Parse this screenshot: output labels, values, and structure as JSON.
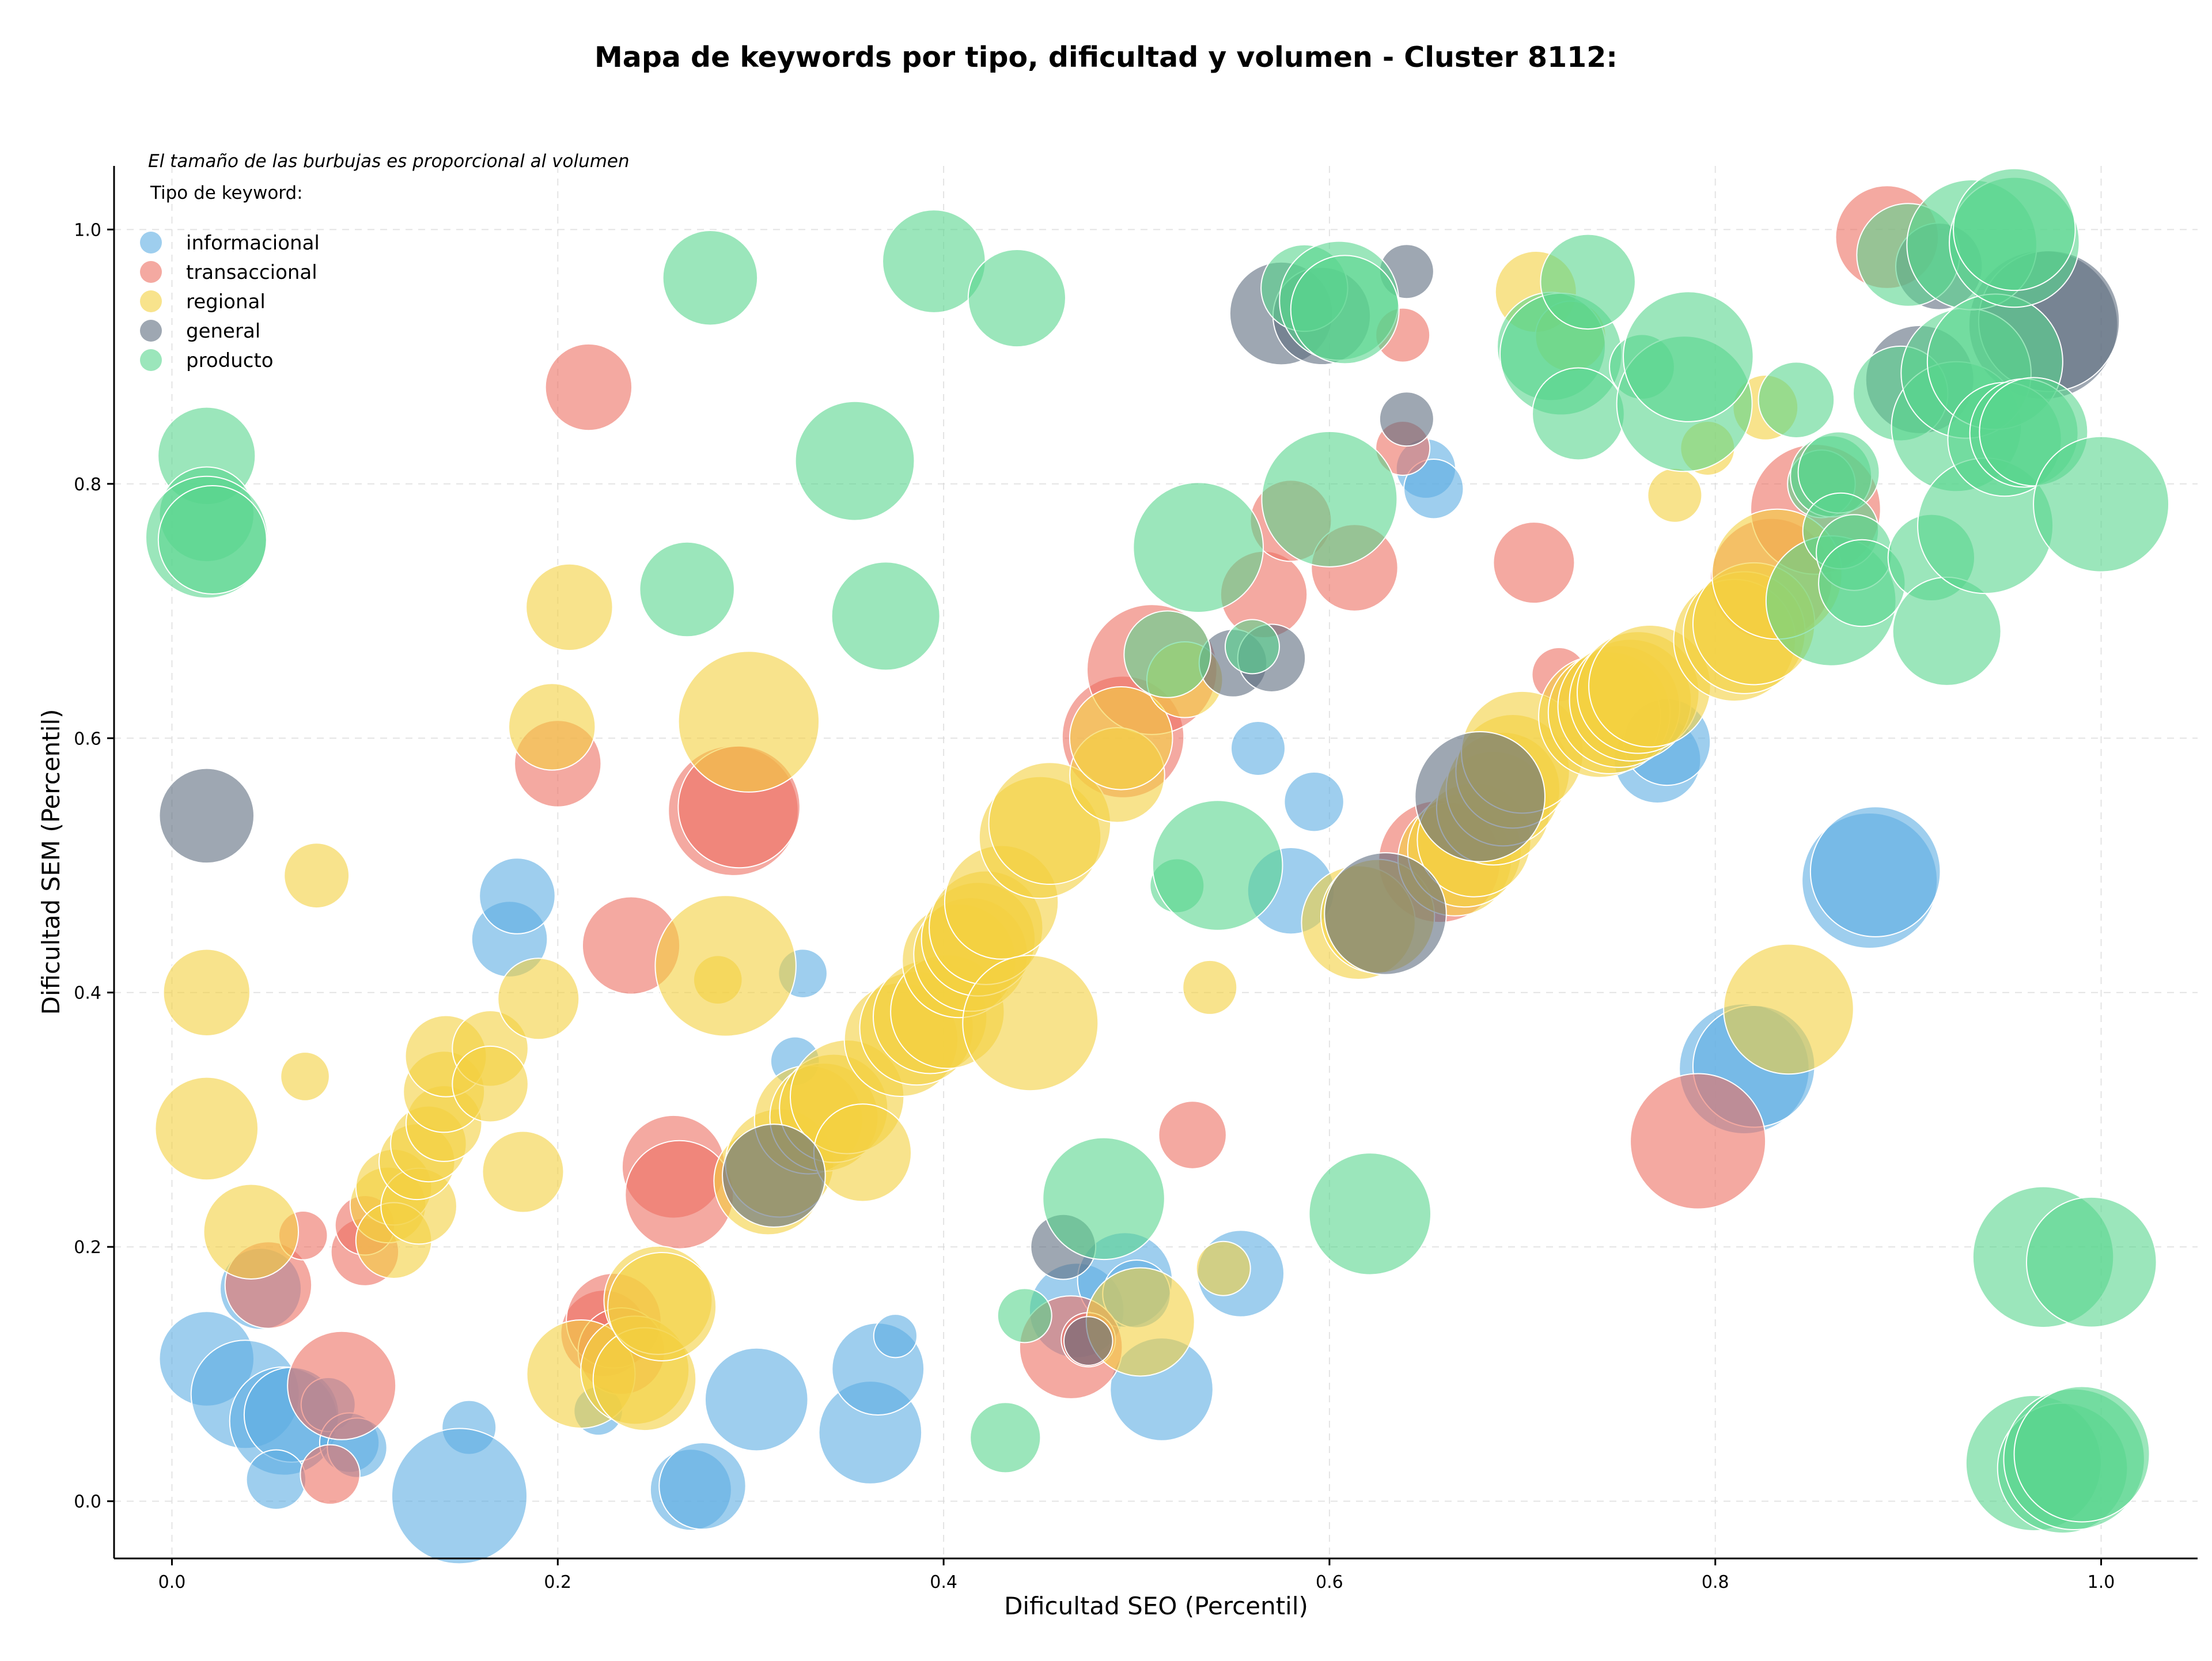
{
  "chart_data": {
    "type": "scatter",
    "title": "Mapa de keywords por tipo, dificultad y volumen - Cluster 8112:",
    "xlabel": "Dificultad SEO (Percentil)",
    "ylabel": "Dificultad SEM (Percentil)",
    "annotation": "El tamaño de las burbujas es proporcional al volumen",
    "legend_title": "Tipo de keyword:",
    "legend_position": "top-left",
    "grid": true,
    "xlim": [
      -0.03,
      1.05
    ],
    "ylim": [
      -0.045,
      1.05
    ],
    "x_ticks": [
      "0.0",
      "0.2",
      "0.4",
      "0.6",
      "0.8",
      "1.0"
    ],
    "y_ticks": [
      "0.0",
      "0.2",
      "0.4",
      "0.6",
      "0.8",
      "1.0"
    ],
    "series": [
      {
        "name": "informacional",
        "color": "#5DADE2",
        "points": [
          [
            0.018,
            0.112,
            35
          ],
          [
            0.038,
            0.084,
            40
          ],
          [
            0.046,
            0.167,
            30
          ],
          [
            0.058,
            0.063,
            40
          ],
          [
            0.062,
            0.068,
            35
          ],
          [
            0.054,
            0.017,
            22
          ],
          [
            0.081,
            0.076,
            20
          ],
          [
            0.092,
            0.046,
            22
          ],
          [
            0.096,
            0.042,
            22
          ],
          [
            0.175,
            0.442,
            28
          ],
          [
            0.179,
            0.476,
            28
          ],
          [
            0.154,
            0.058,
            20
          ],
          [
            0.149,
            0.004,
            50
          ],
          [
            0.221,
            0.071,
            18
          ],
          [
            0.269,
            0.009,
            30
          ],
          [
            0.275,
            0.012,
            32
          ],
          [
            0.303,
            0.08,
            38
          ],
          [
            0.323,
            0.346,
            18
          ],
          [
            0.327,
            0.415,
            18
          ],
          [
            0.362,
            0.054,
            38
          ],
          [
            0.366,
            0.104,
            34
          ],
          [
            0.375,
            0.13,
            16
          ],
          [
            0.469,
            0.15,
            35
          ],
          [
            0.494,
            0.174,
            35
          ],
          [
            0.5,
            0.163,
            25
          ],
          [
            0.513,
            0.088,
            38
          ],
          [
            0.554,
            0.179,
            32
          ],
          [
            0.563,
            0.592,
            20
          ],
          [
            0.592,
            0.55,
            22
          ],
          [
            0.58,
            0.48,
            32
          ],
          [
            0.65,
            0.812,
            22
          ],
          [
            0.654,
            0.796,
            22
          ],
          [
            0.77,
            0.583,
            32
          ],
          [
            0.775,
            0.597,
            32
          ],
          [
            0.815,
            0.34,
            48
          ],
          [
            0.82,
            0.342,
            45
          ],
          [
            0.88,
            0.488,
            50
          ],
          [
            0.883,
            0.495,
            48
          ]
        ]
      },
      {
        "name": "transaccional",
        "color": "#EC7063",
        "points": [
          [
            0.05,
            0.17,
            32
          ],
          [
            0.068,
            0.209,
            18
          ],
          [
            0.1,
            0.196,
            25
          ],
          [
            0.1,
            0.217,
            22
          ],
          [
            0.082,
            0.021,
            22
          ],
          [
            0.088,
            0.091,
            40
          ],
          [
            0.2,
            0.58,
            32
          ],
          [
            0.216,
            0.876,
            32
          ],
          [
            0.224,
            0.132,
            32
          ],
          [
            0.229,
            0.142,
            35
          ],
          [
            0.233,
            0.118,
            32
          ],
          [
            0.238,
            0.437,
            36
          ],
          [
            0.26,
            0.263,
            38
          ],
          [
            0.263,
            0.241,
            40
          ],
          [
            0.291,
            0.543,
            48
          ],
          [
            0.294,
            0.546,
            45
          ],
          [
            0.466,
            0.121,
            38
          ],
          [
            0.475,
            0.127,
            20
          ],
          [
            0.493,
            0.601,
            45
          ],
          [
            0.508,
            0.654,
            48
          ],
          [
            0.529,
            0.288,
            25
          ],
          [
            0.566,
            0.713,
            32
          ],
          [
            0.58,
            0.771,
            30
          ],
          [
            0.613,
            0.734,
            32
          ],
          [
            0.638,
            0.917,
            20
          ],
          [
            0.638,
            0.828,
            20
          ],
          [
            0.657,
            0.503,
            45
          ],
          [
            0.706,
            0.738,
            30
          ],
          [
            0.719,
            0.65,
            20
          ],
          [
            0.791,
            0.283,
            50
          ],
          [
            0.829,
            0.725,
            45
          ],
          [
            0.852,
            0.78,
            48
          ],
          [
            0.889,
            0.994,
            38
          ]
        ]
      },
      {
        "name": "regional",
        "color": "#F4D03F",
        "points": [
          [
            0.018,
            0.293,
            38
          ],
          [
            0.018,
            0.4,
            32
          ],
          [
            0.041,
            0.212,
            35
          ],
          [
            0.069,
            0.334,
            18
          ],
          [
            0.075,
            0.492,
            24
          ],
          [
            0.112,
            0.233,
            28
          ],
          [
            0.115,
            0.247,
            28
          ],
          [
            0.115,
            0.205,
            28
          ],
          [
            0.128,
            0.232,
            28
          ],
          [
            0.127,
            0.267,
            28
          ],
          [
            0.133,
            0.281,
            28
          ],
          [
            0.141,
            0.297,
            28
          ],
          [
            0.141,
            0.322,
            30
          ],
          [
            0.142,
            0.35,
            30
          ],
          [
            0.165,
            0.356,
            28
          ],
          [
            0.165,
            0.328,
            28
          ],
          [
            0.182,
            0.259,
            30
          ],
          [
            0.19,
            0.395,
            30
          ],
          [
            0.197,
            0.609,
            32
          ],
          [
            0.206,
            0.703,
            32
          ],
          [
            0.212,
            0.1,
            40
          ],
          [
            0.24,
            0.103,
            40
          ],
          [
            0.245,
            0.096,
            38
          ],
          [
            0.252,
            0.158,
            40
          ],
          [
            0.254,
            0.153,
            40
          ],
          [
            0.283,
            0.41,
            18
          ],
          [
            0.287,
            0.421,
            52
          ],
          [
            0.299,
            0.613,
            52
          ],
          [
            0.309,
            0.252,
            40
          ],
          [
            0.315,
            0.266,
            40
          ],
          [
            0.33,
            0.3,
            40
          ],
          [
            0.338,
            0.302,
            40
          ],
          [
            0.343,
            0.309,
            40
          ],
          [
            0.35,
            0.318,
            42
          ],
          [
            0.358,
            0.274,
            36
          ],
          [
            0.378,
            0.363,
            42
          ],
          [
            0.386,
            0.372,
            42
          ],
          [
            0.393,
            0.381,
            42
          ],
          [
            0.402,
            0.385,
            42
          ],
          [
            0.408,
            0.425,
            42
          ],
          [
            0.414,
            0.43,
            42
          ],
          [
            0.418,
            0.442,
            42
          ],
          [
            0.422,
            0.451,
            42
          ],
          [
            0.43,
            0.471,
            42
          ],
          [
            0.445,
            0.376,
            50
          ],
          [
            0.45,
            0.522,
            45
          ],
          [
            0.455,
            0.533,
            45
          ],
          [
            0.49,
            0.571,
            35
          ],
          [
            0.492,
            0.6,
            38
          ],
          [
            0.525,
            0.646,
            28
          ],
          [
            0.538,
            0.404,
            20
          ],
          [
            0.545,
            0.183,
            20
          ],
          [
            0.615,
            0.455,
            42
          ],
          [
            0.625,
            0.46,
            42
          ],
          [
            0.665,
            0.505,
            42
          ],
          [
            0.67,
            0.512,
            42
          ],
          [
            0.675,
            0.52,
            42
          ],
          [
            0.685,
            0.545,
            42
          ],
          [
            0.69,
            0.56,
            42
          ],
          [
            0.695,
            0.574,
            42
          ],
          [
            0.7,
            0.589,
            45
          ],
          [
            0.707,
            0.951,
            30
          ],
          [
            0.725,
            0.916,
            26
          ],
          [
            0.74,
            0.617,
            45
          ],
          [
            0.745,
            0.62,
            45
          ],
          [
            0.75,
            0.625,
            45
          ],
          [
            0.756,
            0.63,
            45
          ],
          [
            0.76,
            0.636,
            45
          ],
          [
            0.766,
            0.641,
            45
          ],
          [
            0.779,
            0.791,
            20
          ],
          [
            0.796,
            0.828,
            20
          ],
          [
            0.81,
            0.677,
            45
          ],
          [
            0.815,
            0.683,
            45
          ],
          [
            0.82,
            0.69,
            45
          ],
          [
            0.826,
            0.86,
            24
          ],
          [
            0.832,
            0.729,
            48
          ],
          [
            0.838,
            0.387,
            48
          ],
          [
            0.502,
            0.141,
            40
          ]
        ]
      },
      {
        "name": "general",
        "color": "#5D6D7E",
        "points": [
          [
            0.018,
            0.539,
            35
          ],
          [
            0.312,
            0.256,
            38
          ],
          [
            0.462,
            0.2,
            24
          ],
          [
            0.475,
            0.126,
            18
          ],
          [
            0.55,
            0.659,
            25
          ],
          [
            0.57,
            0.663,
            25
          ],
          [
            0.575,
            0.934,
            38
          ],
          [
            0.596,
            0.932,
            36
          ],
          [
            0.629,
            0.462,
            45
          ],
          [
            0.64,
            0.967,
            20
          ],
          [
            0.64,
            0.851,
            20
          ],
          [
            0.678,
            0.554,
            48
          ],
          [
            0.906,
            0.882,
            40
          ],
          [
            0.916,
            0.971,
            32
          ],
          [
            0.97,
            0.925,
            55
          ],
          [
            0.973,
            0.928,
            52
          ]
        ]
      },
      {
        "name": "producto",
        "color": "#58D68D",
        "points": [
          [
            0.018,
            0.822,
            36
          ],
          [
            0.018,
            0.776,
            35
          ],
          [
            0.018,
            0.758,
            45
          ],
          [
            0.021,
            0.756,
            40
          ],
          [
            0.267,
            0.717,
            35
          ],
          [
            0.279,
            0.962,
            35
          ],
          [
            0.354,
            0.818,
            44
          ],
          [
            0.37,
            0.696,
            40
          ],
          [
            0.395,
            0.975,
            38
          ],
          [
            0.438,
            0.946,
            36
          ],
          [
            0.432,
            0.05,
            26
          ],
          [
            0.442,
            0.146,
            20
          ],
          [
            0.483,
            0.238,
            45
          ],
          [
            0.516,
            0.666,
            32
          ],
          [
            0.521,
            0.484,
            20
          ],
          [
            0.532,
            0.75,
            48
          ],
          [
            0.542,
            0.5,
            48
          ],
          [
            0.56,
            0.672,
            20
          ],
          [
            0.587,
            0.954,
            32
          ],
          [
            0.6,
            0.788,
            50
          ],
          [
            0.605,
            0.944,
            44
          ],
          [
            0.608,
            0.937,
            40
          ],
          [
            0.621,
            0.226,
            45
          ],
          [
            0.715,
            0.908,
            40
          ],
          [
            0.72,
            0.902,
            45
          ],
          [
            0.729,
            0.855,
            34
          ],
          [
            0.734,
            0.959,
            35
          ],
          [
            0.762,
            0.892,
            24
          ],
          [
            0.784,
            0.863,
            50
          ],
          [
            0.786,
            0.9,
            48
          ],
          [
            0.842,
            0.866,
            28
          ],
          [
            0.855,
            0.8,
            25
          ],
          [
            0.86,
            0.806,
            30
          ],
          [
            0.86,
            0.708,
            48
          ],
          [
            0.864,
            0.809,
            30
          ],
          [
            0.865,
            0.763,
            28
          ],
          [
            0.872,
            0.746,
            28
          ],
          [
            0.876,
            0.722,
            32
          ],
          [
            0.896,
            0.871,
            35
          ],
          [
            0.9,
            0.98,
            38
          ],
          [
            0.912,
            0.742,
            32
          ],
          [
            0.92,
            0.684,
            40
          ],
          [
            0.925,
            0.845,
            48
          ],
          [
            0.93,
            0.887,
            48
          ],
          [
            0.933,
            0.988,
            48
          ],
          [
            0.94,
            0.767,
            50
          ],
          [
            0.945,
            0.896,
            50
          ],
          [
            0.95,
            0.835,
            42
          ],
          [
            0.955,
            0.99,
            48
          ],
          [
            0.955,
            1.0,
            45
          ],
          [
            0.96,
            0.84,
            40
          ],
          [
            0.965,
            0.841,
            40
          ],
          [
            0.965,
            0.03,
            50
          ],
          [
            0.97,
            0.192,
            52
          ],
          [
            0.98,
            0.026,
            48
          ],
          [
            0.986,
            0.033,
            52
          ],
          [
            0.99,
            0.037,
            50
          ],
          [
            0.995,
            0.188,
            48
          ],
          [
            1.0,
            0.784,
            50
          ]
        ]
      }
    ]
  }
}
